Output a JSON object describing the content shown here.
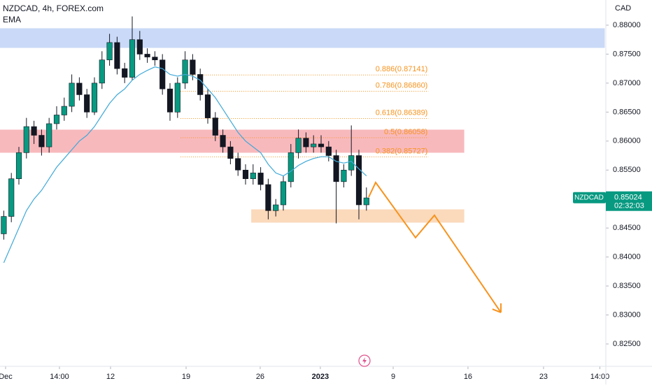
{
  "chart_data": {
    "type": "candlestick",
    "title": "NZDCAD, 4h, FOREX.com",
    "indicator": "EMA",
    "currency": "CAD",
    "symbol": "NZDCAD",
    "last_price": {
      "value": 0.85024,
      "label": "0.85024"
    },
    "countdown": "02:32:03",
    "up_color": "#089981",
    "down_color": "#131722",
    "ema_color": "#3fa9d8",
    "xlim": [
      0,
      80
    ],
    "ylim": [
      0.82138,
      0.88434
    ],
    "yticks": [
      {
        "value": 0.825,
        "label": "0.82500"
      },
      {
        "value": 0.83,
        "label": "0.83000"
      },
      {
        "value": 0.835,
        "label": "0.83500"
      },
      {
        "value": 0.84,
        "label": "0.84000"
      },
      {
        "value": 0.845,
        "label": "0.84500"
      },
      {
        "value": 0.85,
        "label": "0.85000"
      },
      {
        "value": 0.855,
        "label": "0.85500"
      },
      {
        "value": 0.86,
        "label": "0.86000"
      },
      {
        "value": 0.865,
        "label": "0.86500"
      },
      {
        "value": 0.87,
        "label": "0.87000"
      },
      {
        "value": 0.875,
        "label": "0.87500"
      },
      {
        "value": 0.88,
        "label": "0.88000"
      }
    ],
    "xticks": [
      {
        "value": 0.74,
        "label": "Dec"
      },
      {
        "value": 7.87,
        "label": "14:00"
      },
      {
        "value": 14.63,
        "label": "12"
      },
      {
        "value": 24.63,
        "label": "19"
      },
      {
        "value": 34.44,
        "label": "26"
      },
      {
        "value": 42.4,
        "label": "2023"
      },
      {
        "value": 52.04,
        "label": "9"
      },
      {
        "value": 61.94,
        "label": "16"
      },
      {
        "value": 71.94,
        "label": "23"
      },
      {
        "value": 79.4,
        "label": "14:00"
      }
    ],
    "open": [
      0.844,
      0.847,
      0.8535,
      0.858,
      0.8625,
      0.861,
      0.859,
      0.863,
      0.8645,
      0.866,
      0.87,
      0.868,
      0.865,
      0.87,
      0.874,
      0.877,
      0.8725,
      0.871,
      0.8775,
      0.875,
      0.8745,
      0.874,
      0.869,
      0.865,
      0.87,
      0.874,
      0.8715,
      0.868,
      0.864,
      0.861,
      0.859,
      0.857,
      0.855,
      0.8535,
      0.8545,
      0.8525,
      0.848,
      0.849,
      0.853,
      0.858,
      0.8605,
      0.859,
      0.8595,
      0.859,
      0.8575,
      0.853,
      0.855,
      0.8575,
      0.849
    ],
    "high": [
      0.848,
      0.8545,
      0.859,
      0.864,
      0.8635,
      0.862,
      0.864,
      0.866,
      0.8675,
      0.8715,
      0.871,
      0.869,
      0.871,
      0.8755,
      0.8785,
      0.878,
      0.8735,
      0.8815,
      0.879,
      0.876,
      0.8755,
      0.875,
      0.87,
      0.871,
      0.8755,
      0.875,
      0.8725,
      0.869,
      0.865,
      0.862,
      0.86,
      0.858,
      0.856,
      0.856,
      0.8555,
      0.8535,
      0.85,
      0.854,
      0.8595,
      0.862,
      0.8615,
      0.861,
      0.861,
      0.86,
      0.8585,
      0.856,
      0.8627,
      0.8585,
      0.852
    ],
    "low": [
      0.843,
      0.846,
      0.8525,
      0.857,
      0.8595,
      0.8575,
      0.858,
      0.862,
      0.8635,
      0.865,
      0.867,
      0.864,
      0.8645,
      0.869,
      0.873,
      0.8715,
      0.87,
      0.8705,
      0.874,
      0.8735,
      0.873,
      0.868,
      0.8635,
      0.864,
      0.869,
      0.8705,
      0.867,
      0.863,
      0.86,
      0.858,
      0.856,
      0.854,
      0.8525,
      0.8525,
      0.8515,
      0.8465,
      0.847,
      0.848,
      0.852,
      0.857,
      0.858,
      0.858,
      0.858,
      0.8565,
      0.8458,
      0.852,
      0.854,
      0.8465,
      0.848
    ],
    "close": [
      0.847,
      0.8535,
      0.858,
      0.8625,
      0.861,
      0.859,
      0.863,
      0.8645,
      0.866,
      0.87,
      0.868,
      0.865,
      0.87,
      0.874,
      0.877,
      0.8725,
      0.871,
      0.8775,
      0.875,
      0.8745,
      0.874,
      0.869,
      0.865,
      0.87,
      0.874,
      0.8715,
      0.868,
      0.864,
      0.861,
      0.859,
      0.857,
      0.855,
      0.8535,
      0.8545,
      0.8525,
      0.848,
      0.849,
      0.853,
      0.858,
      0.8605,
      0.859,
      0.8595,
      0.859,
      0.8575,
      0.853,
      0.855,
      0.8575,
      0.849,
      0.8502
    ],
    "ema": [
      0.839,
      0.842,
      0.845,
      0.848,
      0.85,
      0.8515,
      0.8535,
      0.8555,
      0.857,
      0.8585,
      0.86,
      0.861,
      0.8625,
      0.8645,
      0.8665,
      0.868,
      0.869,
      0.8705,
      0.8715,
      0.8722,
      0.8728,
      0.8725,
      0.8715,
      0.8712,
      0.8715,
      0.8712,
      0.8705,
      0.869,
      0.8675,
      0.8655,
      0.8635,
      0.8615,
      0.86,
      0.859,
      0.858,
      0.856,
      0.8545,
      0.854,
      0.8548,
      0.8558,
      0.8565,
      0.857,
      0.8573,
      0.8573,
      0.8565,
      0.8562,
      0.8565,
      0.8552,
      0.854
    ],
    "zones": [
      {
        "x": [
          0,
          80
        ],
        "y": [
          0.87614,
          0.8794
        ],
        "color": "#c9d9f7"
      },
      {
        "x": [
          0,
          61.4
        ],
        "y": [
          0.85805,
          0.86191
        ],
        "color": "#f8b9bd"
      },
      {
        "x": [
          33.3,
          61.4
        ],
        "y": [
          0.84599,
          0.84816
        ],
        "color": "#fbd9bb"
      }
    ],
    "fib_x": [
      23.9,
      56.7
    ],
    "fib_levels": [
      {
        "value": 0.87141,
        "label": "0.886(0.87141)"
      },
      {
        "value": 0.8686,
        "label": "0.786(0.86860)"
      },
      {
        "value": 0.86389,
        "label": "0.618(0.86389)"
      },
      {
        "value": 0.86058,
        "label": "0.5(0.86058)"
      },
      {
        "value": 0.85727,
        "label": "0.382(0.85727)"
      }
    ],
    "projection": {
      "x": [
        48.8,
        49.72,
        55.0,
        57.5,
        66.3
      ],
      "y": [
        0.85033,
        0.85286,
        0.84334,
        0.8472,
        0.83044
      ],
      "color": "#f7931e"
    }
  }
}
